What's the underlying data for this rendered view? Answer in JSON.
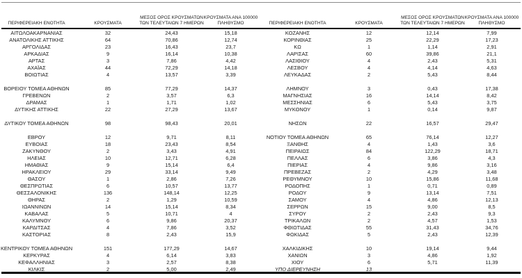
{
  "headers": {
    "region": "ΠΕΡΙΦΕΡΕΙΑΚΗ ΕΝΟΤΗΤΑ",
    "cases": "ΚΡΟΥΣΜΑΤΑ",
    "avg7": "ΜΕΣΟΣ ΟΡΟΣ ΚΡΟΥΣΜΑΤΩΝ ΤΩΝ ΤΕΛΕΥΤΑΙΩΝ 7 ΗΜΕΡΩΝ",
    "per100k": "ΚΡΟΥΣΜΑΤΑ ΑΝΑ 100000 ΠΛΗΘΥΣΜΟ"
  },
  "tables": [
    {
      "side": "left",
      "rows": [
        {
          "region": "ΑΙΤΩΛΟΑΚΑΡΝΑΝΙΑΣ",
          "cases": "32",
          "avg7": "24,43",
          "per100k": "15,18"
        },
        {
          "region": "ΑΝΑΤΟΛΙΚΗΣ ΑΤΤΙΚΗΣ",
          "cases": "64",
          "avg7": "70,86",
          "per100k": "12,74"
        },
        {
          "region": "ΑΡΓΟΛΙΔΑΣ",
          "cases": "23",
          "avg7": "16,43",
          "per100k": "23,7"
        },
        {
          "region": "ΑΡΚΑΔΙΑΣ",
          "cases": "9",
          "avg7": "16,14",
          "per100k": "10,38"
        },
        {
          "region": "ΑΡΤΑΣ",
          "cases": "3",
          "avg7": "7,86",
          "per100k": "4,42"
        },
        {
          "region": "ΑΧΑΪΑΣ",
          "cases": "44",
          "avg7": "72,29",
          "per100k": "14,18"
        },
        {
          "region": "ΒΟΙΩΤΙΑΣ",
          "cases": "4",
          "avg7": "13,57",
          "per100k": "3,39"
        },
        {
          "blank": true
        },
        {
          "region": "ΒΟΡΕΙΟΥ ΤΟΜΕΑ ΑΘΗΝΩΝ",
          "cases": "85",
          "avg7": "77,29",
          "per100k": "14,37"
        },
        {
          "region": "ΓΡΕΒΕΝΩΝ",
          "cases": "2",
          "avg7": "3,57",
          "per100k": "6,3"
        },
        {
          "region": "ΔΡΑΜΑΣ",
          "cases": "1",
          "avg7": "1,71",
          "per100k": "1,02"
        },
        {
          "region": "ΔΥΤΙΚΗΣ ΑΤΤΙΚΗΣ",
          "cases": "22",
          "avg7": "27,29",
          "per100k": "13,67"
        },
        {
          "blank": true
        },
        {
          "region": "ΔΥΤΙΚΟΥ ΤΟΜΕΑ ΑΘΗΝΩΝ",
          "cases": "98",
          "avg7": "98,43",
          "per100k": "20,01"
        },
        {
          "blank": true
        },
        {
          "region": "ΕΒΡΟΥ",
          "cases": "12",
          "avg7": "9,71",
          "per100k": "8,11"
        },
        {
          "region": "ΕΥΒΟΙΑΣ",
          "cases": "18",
          "avg7": "23,43",
          "per100k": "8,54"
        },
        {
          "region": "ΖΑΚΥΝΘΟΥ",
          "cases": "2",
          "avg7": "3,43",
          "per100k": "4,91"
        },
        {
          "region": "ΗΛΕΙΑΣ",
          "cases": "10",
          "avg7": "12,71",
          "per100k": "6,28"
        },
        {
          "region": "ΗΜΑΘΙΑΣ",
          "cases": "9",
          "avg7": "15,14",
          "per100k": "6,4"
        },
        {
          "region": "ΗΡΑΚΛΕΙΟΥ",
          "cases": "29",
          "avg7": "33,14",
          "per100k": "9,49"
        },
        {
          "region": "ΘΑΣΟΥ",
          "cases": "1",
          "avg7": "2,86",
          "per100k": "7,26"
        },
        {
          "region": "ΘΕΣΠΡΩΤΙΑΣ",
          "cases": "6",
          "avg7": "10,57",
          "per100k": "13,77"
        },
        {
          "region": "ΘΕΣΣΑΛΟΝΙΚΗΣ",
          "cases": "136",
          "avg7": "148,14",
          "per100k": "12,25"
        },
        {
          "region": "ΘΗΡΑΣ",
          "cases": "2",
          "avg7": "1,29",
          "per100k": "10,59"
        },
        {
          "region": "ΙΩΑΝΝΙΝΩΝ",
          "cases": "14",
          "avg7": "15,14",
          "per100k": "8,34"
        },
        {
          "region": "ΚΑΒΑΛΑΣ",
          "cases": "5",
          "avg7": "10,71",
          "per100k": "4"
        },
        {
          "region": "ΚΑΛΥΜΝΟΥ",
          "cases": "6",
          "avg7": "9,86",
          "per100k": "20,37"
        },
        {
          "region": "ΚΑΡΔΙΤΣΑΣ",
          "cases": "4",
          "avg7": "7,86",
          "per100k": "3,52"
        },
        {
          "region": "ΚΑΣΤΟΡΙΑΣ",
          "cases": "8",
          "avg7": "2,43",
          "per100k": "15,9"
        },
        {
          "blank": true
        },
        {
          "region": "ΚΕΝΤΡΙΚΟΥ ΤΟΜΕΑ ΑΘΗΝΩΝ",
          "cases": "151",
          "avg7": "177,29",
          "per100k": "14,67"
        },
        {
          "region": "ΚΕΡΚΥΡΑΣ",
          "cases": "4",
          "avg7": "6,14",
          "per100k": "3,83"
        },
        {
          "region": "ΚΕΦΑΛΛΗΝΙΑΣ",
          "cases": "3",
          "avg7": "2,57",
          "per100k": "8,38"
        },
        {
          "region": "ΚΙΛΚΙΣ",
          "cases": "2",
          "avg7": "5,00",
          "per100k": "2,49"
        }
      ]
    },
    {
      "side": "right",
      "rows": [
        {
          "region": "ΚΟΖΑΝΗΣ",
          "cases": "12",
          "avg7": "12,14",
          "per100k": "7,99"
        },
        {
          "region": "ΚΟΡΙΝΘΙΑΣ",
          "cases": "25",
          "avg7": "22,29",
          "per100k": "17,23"
        },
        {
          "region": "ΚΩ",
          "cases": "1",
          "avg7": "1,14",
          "per100k": "2,91"
        },
        {
          "region": "ΛΑΡΙΣΑΣ",
          "cases": "60",
          "avg7": "39,86",
          "per100k": "21,1"
        },
        {
          "region": "ΛΑΣΙΘΙΟΥ",
          "cases": "4",
          "avg7": "2,43",
          "per100k": "5,31"
        },
        {
          "region": "ΛΕΣΒΟΥ",
          "cases": "4",
          "avg7": "4,14",
          "per100k": "4,63"
        },
        {
          "region": "ΛΕΥΚΑΔΑΣ",
          "cases": "2",
          "avg7": "5,43",
          "per100k": "8,44"
        },
        {
          "blank": true
        },
        {
          "region": "ΛΗΜΝΟΥ",
          "cases": "3",
          "avg7": "0,43",
          "per100k": "17,38"
        },
        {
          "region": "ΜΑΓΝΗΣΙΑΣ",
          "cases": "16",
          "avg7": "14,14",
          "per100k": "8,42"
        },
        {
          "region": "ΜΕΣΣΗΝΙΑΣ",
          "cases": "6",
          "avg7": "5,43",
          "per100k": "3,75"
        },
        {
          "region": "ΜΥΚΟΝΟΥ",
          "cases": "1",
          "avg7": "0,14",
          "per100k": "9,87"
        },
        {
          "blank": true
        },
        {
          "region": "ΝΗΣΩΝ",
          "cases": "22",
          "avg7": "16,57",
          "per100k": "29,47"
        },
        {
          "blank": true
        },
        {
          "region": "ΝΟΤΙΟΥ ΤΟΜΕΑ ΑΘΗΝΩΝ",
          "cases": "65",
          "avg7": "76,14",
          "per100k": "12,27"
        },
        {
          "region": "ΞΑΝΘΗΣ",
          "cases": "4",
          "avg7": "1,43",
          "per100k": "3,6"
        },
        {
          "region": "ΠΕΙΡΑΙΩΣ",
          "cases": "84",
          "avg7": "122,29",
          "per100k": "18,71"
        },
        {
          "region": "ΠΕΛΛΑΣ",
          "cases": "6",
          "avg7": "3,86",
          "per100k": "4,3"
        },
        {
          "region": "ΠΙΕΡΙΑΣ",
          "cases": "4",
          "avg7": "9,86",
          "per100k": "3,16"
        },
        {
          "region": "ΠΡΕΒΕΖΑΣ",
          "cases": "2",
          "avg7": "4,29",
          "per100k": "3,48"
        },
        {
          "region": "ΡΕΘΥΜΝΟΥ",
          "cases": "10",
          "avg7": "15,86",
          "per100k": "11,68"
        },
        {
          "region": "ΡΟΔΟΠΗΣ",
          "cases": "1",
          "avg7": "0,71",
          "per100k": "0,89"
        },
        {
          "region": "ΡΟΔΟΥ",
          "cases": "9",
          "avg7": "13,14",
          "per100k": "7,51"
        },
        {
          "region": "ΣΑΜΟΥ",
          "cases": "4",
          "avg7": "4,86",
          "per100k": "12,13"
        },
        {
          "region": "ΣΕΡΡΩΝ",
          "cases": "15",
          "avg7": "9,00",
          "per100k": "8,5"
        },
        {
          "region": "ΣΥΡΟΥ",
          "cases": "2",
          "avg7": "2,43",
          "per100k": "9,3"
        },
        {
          "region": "ΤΡΙΚΑΛΩΝ",
          "cases": "2",
          "avg7": "4,57",
          "per100k": "1,53"
        },
        {
          "region": "ΦΘΙΩΤΙΔΑΣ",
          "cases": "55",
          "avg7": "31,43",
          "per100k": "34,76"
        },
        {
          "region": "ΦΩΚΙΔΑΣ",
          "cases": "5",
          "avg7": "2,43",
          "per100k": "12,39"
        },
        {
          "blank": true
        },
        {
          "region": "ΧΑΛΚΙΔΙΚΗΣ",
          "cases": "10",
          "avg7": "19,14",
          "per100k": "9,44"
        },
        {
          "region": "ΧΑΝΙΩΝ",
          "cases": "3",
          "avg7": "4,86",
          "per100k": "1,92"
        },
        {
          "region": "ΧΙΟΥ",
          "cases": "6",
          "avg7": "5,71",
          "per100k": "11,39"
        },
        {
          "region": "ΥΠΟ ΔΙΕΡΕΥΝΗΣΗ",
          "cases": "13",
          "avg7": "",
          "per100k": "",
          "italic": true
        }
      ]
    }
  ]
}
